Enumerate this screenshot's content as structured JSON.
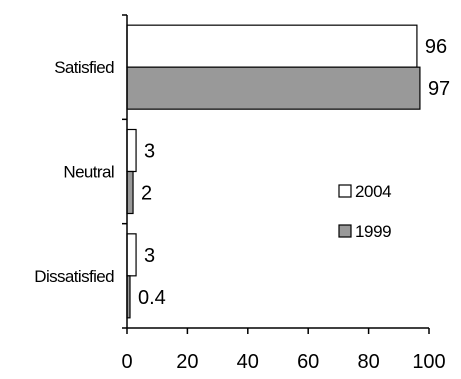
{
  "chart_data": {
    "type": "bar",
    "orientation": "horizontal",
    "categories": [
      "Satisfied",
      "Neutral",
      "Dissatisfied"
    ],
    "series": [
      {
        "name": "2004",
        "values": [
          96,
          3,
          3
        ],
        "value_labels": [
          "96",
          "3",
          "3"
        ],
        "color": "#ffffff"
      },
      {
        "name": "1999",
        "values": [
          97,
          2,
          0.4
        ],
        "value_labels": [
          "97",
          "2",
          "0.4"
        ],
        "color": "#999999"
      }
    ],
    "xlim": [
      0,
      100
    ],
    "xticks": [
      0,
      20,
      40,
      60,
      80,
      100
    ],
    "xtick_labels": [
      "0",
      "20",
      "40",
      "60",
      "80",
      "100"
    ],
    "grid": false,
    "legend": {
      "position": "right",
      "entries": [
        "2004",
        "1999"
      ]
    },
    "bar_edge_color": "#000000",
    "title": "",
    "xlabel": "",
    "ylabel": ""
  }
}
